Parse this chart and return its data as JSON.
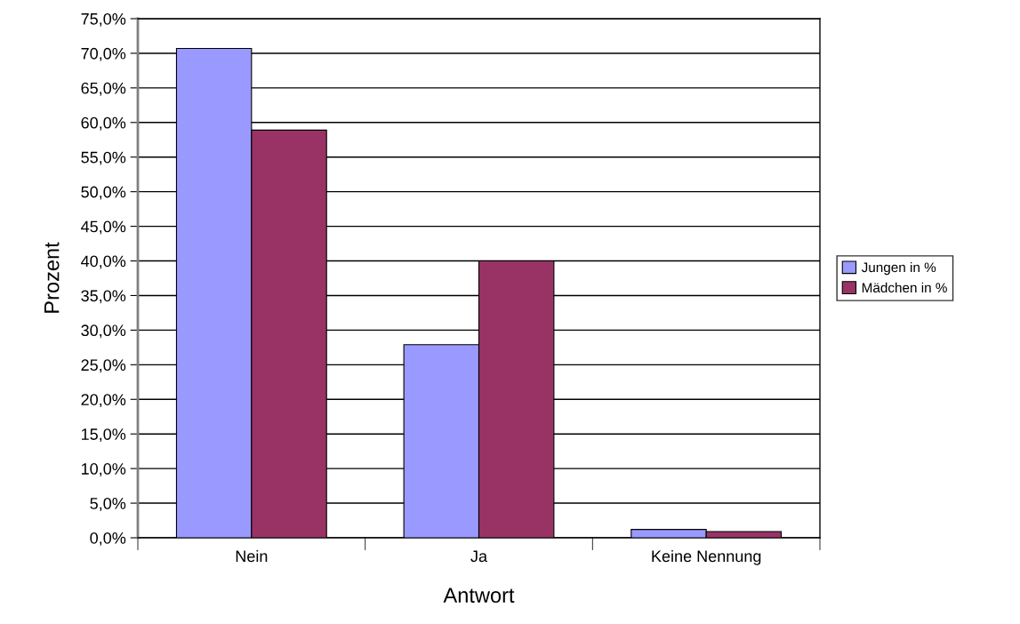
{
  "chart_data": {
    "type": "bar",
    "xlabel": "Antwort",
    "ylabel": "Prozent",
    "categories": [
      "Nein",
      "Ja",
      "Keine Nennung"
    ],
    "series": [
      {
        "name": "Jungen in %",
        "color": "#9999ff",
        "values": [
          70.7,
          27.9,
          1.2
        ]
      },
      {
        "name": "Mädchen in %",
        "color": "#993366",
        "values": [
          58.9,
          40.0,
          0.9
        ]
      }
    ],
    "ylim": [
      0,
      75
    ],
    "yticks": [
      {
        "value": 0,
        "label": "0,0%"
      },
      {
        "value": 5,
        "label": "5,0%"
      },
      {
        "value": 10,
        "label": "10,0%"
      },
      {
        "value": 15,
        "label": "15,0%"
      },
      {
        "value": 20,
        "label": "20,0%"
      },
      {
        "value": 25,
        "label": "25,0%"
      },
      {
        "value": 30,
        "label": "30,0%"
      },
      {
        "value": 35,
        "label": "35,0%"
      },
      {
        "value": 40,
        "label": "40,0%"
      },
      {
        "value": 45,
        "label": "45,0%"
      },
      {
        "value": 50,
        "label": "50,0%"
      },
      {
        "value": 55,
        "label": "55,0%"
      },
      {
        "value": 60,
        "label": "60,0%"
      },
      {
        "value": 65,
        "label": "65,0%"
      },
      {
        "value": 70,
        "label": "70,0%"
      },
      {
        "value": 75,
        "label": "75,0%"
      }
    ],
    "grid": "y",
    "legend": "right"
  }
}
